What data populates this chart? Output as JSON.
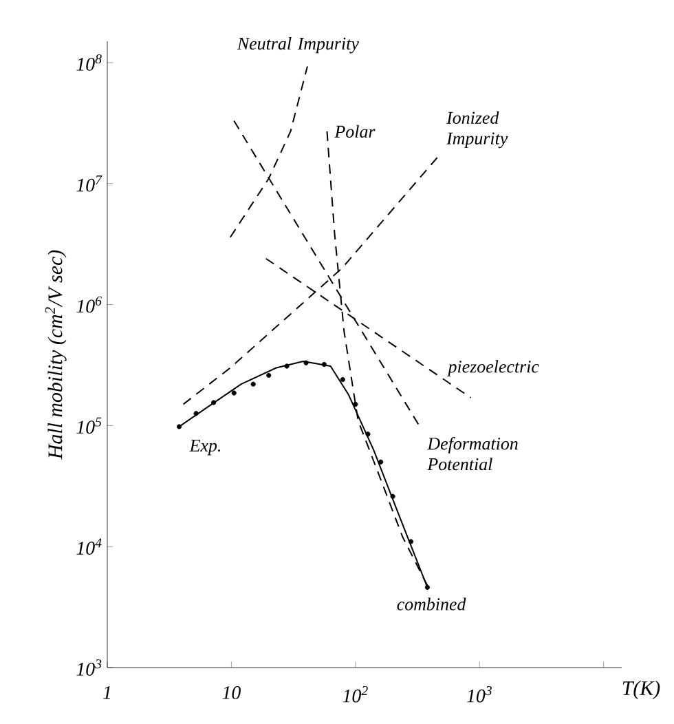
{
  "chart_data": {
    "type": "line",
    "log": "xy",
    "xlabel": "T(K)",
    "ylabel": "Hall mobility (cm$^{2}$/V sec)",
    "xlim": [
      1,
      14000
    ],
    "ylim": [
      1000,
      150000000
    ],
    "xticks": [
      1,
      10,
      {
        "value": 100,
        "label": "10$^{2}$"
      },
      {
        "value": 1000,
        "label": "10$^{3}$"
      },
      {
        "value": 10000,
        "label": null
      }
    ],
    "yticks": [
      {
        "value": 1000,
        "label": "10$^{3}$"
      },
      {
        "value": 10000,
        "label": "10$^{4}$"
      },
      {
        "value": 100000,
        "label": "10$^{5}$"
      },
      {
        "value": 1000000,
        "label": "10$^{6}$"
      },
      {
        "value": 10000000,
        "label": "10$^{7}$"
      },
      {
        "value": 100000000,
        "label": "10$^{8}$"
      }
    ],
    "series": [
      {
        "name": "Neutral Impurity",
        "type": "line",
        "line_style": "dashed",
        "color": "#000000",
        "x": [
          9.8,
          20,
          30,
          41
        ],
        "values": [
          3600000,
          11000000,
          27000000,
          93000000
        ]
      },
      {
        "name": "Polar",
        "type": "line",
        "line_style": "dashed",
        "color": "#000000",
        "x": [
          59,
          68,
          81,
          105,
          155,
          240,
          400
        ],
        "values": [
          27000000,
          3800000,
          600000,
          110000,
          39000,
          12000,
          4300
        ]
      },
      {
        "name": "Ionized Impurity",
        "type": "line",
        "line_style": "dashed",
        "color": "#000000",
        "x": [
          4.1,
          9.8,
          78,
          470
        ],
        "values": [
          150000,
          300000,
          2000000,
          17000000
        ]
      },
      {
        "name": "piezoelectric",
        "type": "line",
        "line_style": "dashed",
        "color": "#000000",
        "x": [
          19,
          850
        ],
        "values": [
          2400000,
          170000
        ]
      },
      {
        "name": "Deformation Potential",
        "type": "line",
        "line_style": "dashed",
        "color": "#000000",
        "x": [
          10.5,
          330
        ],
        "values": [
          33000000,
          98000
        ]
      },
      {
        "name": "combined",
        "type": "line",
        "line_style": "solid",
        "color": "#000000",
        "x": [
          3.8,
          6.3,
          12,
          23,
          38,
          63,
          88,
          140,
          230,
          380
        ],
        "values": [
          98000,
          140000,
          220000,
          300000,
          340000,
          310000,
          180000,
          63000,
          17000,
          4600
        ]
      },
      {
        "name": "Exp.",
        "type": "scatter",
        "marker": "circle",
        "color": "#000000",
        "x": [
          3.8,
          5.2,
          7.2,
          10.5,
          15,
          20,
          28,
          40,
          56,
          79,
          100,
          126,
          160,
          200,
          280,
          380
        ],
        "values": [
          98000,
          126000,
          155000,
          186000,
          220000,
          260000,
          310000,
          330000,
          320000,
          240000,
          150000,
          85000,
          50000,
          26000,
          11000,
          4600
        ]
      }
    ]
  }
}
